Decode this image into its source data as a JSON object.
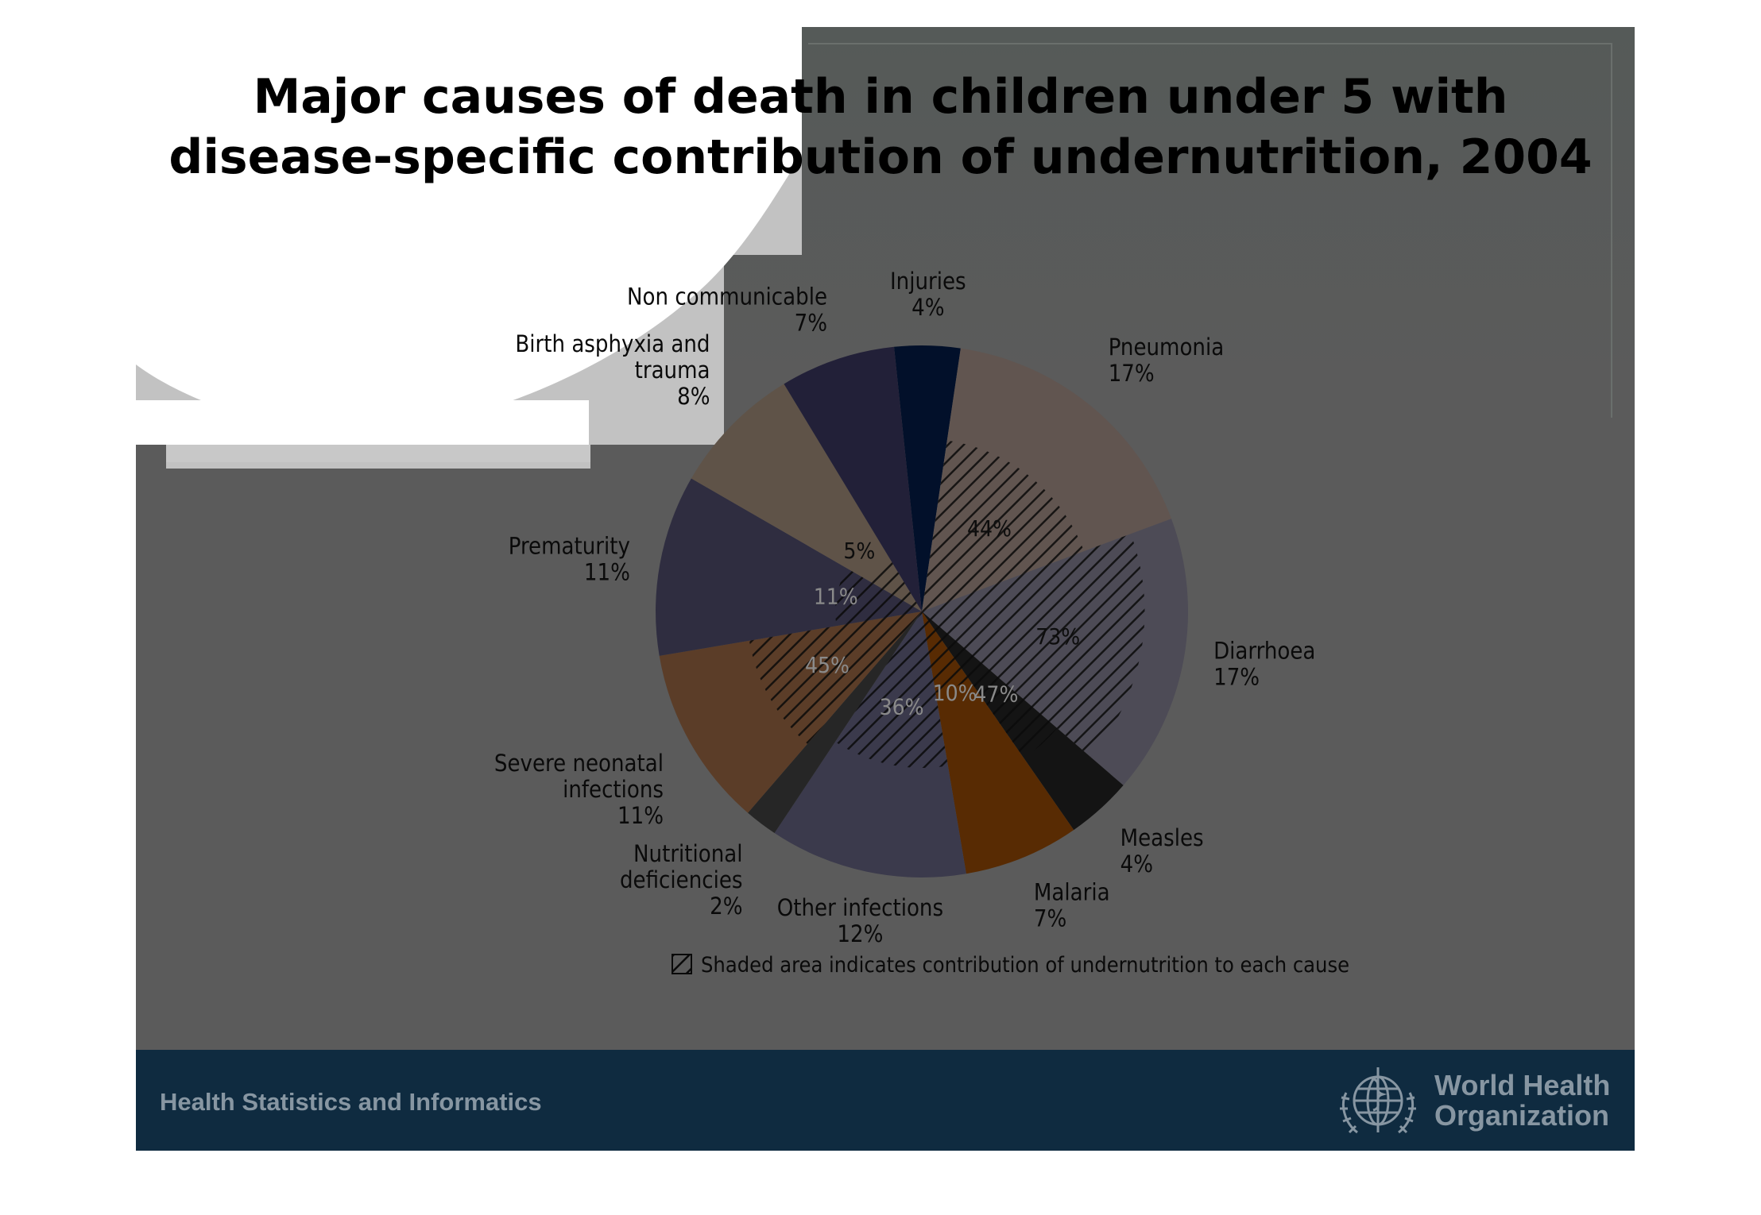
{
  "title_line1": "Major causes of death in children under 5 with",
  "title_line2": "disease-specific contribution of undernutrition, 2004",
  "footer": {
    "left_text": "Health Statistics and Informatics",
    "org_line1": "World Health",
    "org_line2": "Organization",
    "logo_icon": "who-emblem-icon"
  },
  "colors": {
    "slide_bg": "#5b5b5b",
    "footer_bg": "#0f2b40",
    "footer_text": "#8796a2"
  },
  "chart_data": {
    "type": "pie",
    "unit": "%",
    "slices": [
      {
        "label": "Injuries",
        "value": 4,
        "pct_label": "4%",
        "color": "#02102a"
      },
      {
        "label": "Pneumonia",
        "value": 17,
        "pct_label": "17%",
        "color": "#615550",
        "undernutrition": "44%"
      },
      {
        "label": "Diarrhoea",
        "value": 17,
        "pct_label": "17%",
        "color": "#4d4b56",
        "undernutrition": "73%"
      },
      {
        "label": "Measles",
        "value": 4,
        "pct_label": "4%",
        "color": "#141414",
        "undernutrition": "47%"
      },
      {
        "label": "Malaria",
        "value": 7,
        "pct_label": "7%",
        "color": "#582b03",
        "undernutrition": "10%"
      },
      {
        "label": "Other infections",
        "value": 12,
        "pct_label": "12%",
        "color": "#3b3a4c",
        "undernutrition": "36%"
      },
      {
        "label": "Nutritional deficiencies",
        "value": 2,
        "pct_label": "2%",
        "color": "#262626"
      },
      {
        "label": "Severe neonatal infections",
        "value": 11,
        "pct_label": "11%",
        "color": "#5b3d28",
        "undernutrition": "45%"
      },
      {
        "label": "Prematurity",
        "value": 11,
        "pct_label": "11%",
        "color": "#2f2d40",
        "undernutrition": "11%"
      },
      {
        "label": "Birth asphyxia and trauma",
        "value": 8,
        "pct_label": "8%",
        "color": "#5f5348",
        "undernutrition": "5%"
      },
      {
        "label": "Non communicable",
        "value": 7,
        "pct_label": "7%",
        "color": "#222038"
      }
    ],
    "note": "Shaded area indicates contribution of undernutrition to each cause of death."
  }
}
